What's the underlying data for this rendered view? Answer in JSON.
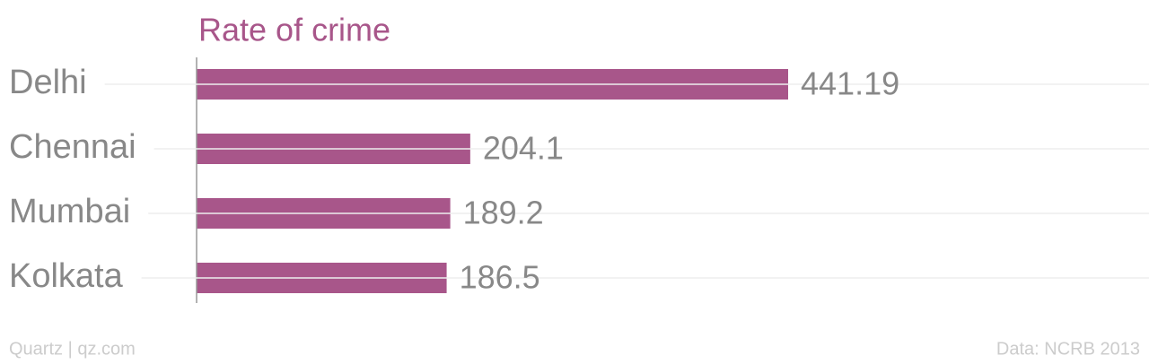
{
  "chart_data": {
    "type": "bar",
    "orientation": "horizontal",
    "title": "Rate of crime",
    "categories": [
      "Delhi",
      "Chennai",
      "Mumbai",
      "Kolkata"
    ],
    "values": [
      441.19,
      204.1,
      189.2,
      186.5
    ],
    "color": "#a8568a",
    "source": "Data: NCRB 2013",
    "credit": "Quartz | qz.com"
  }
}
